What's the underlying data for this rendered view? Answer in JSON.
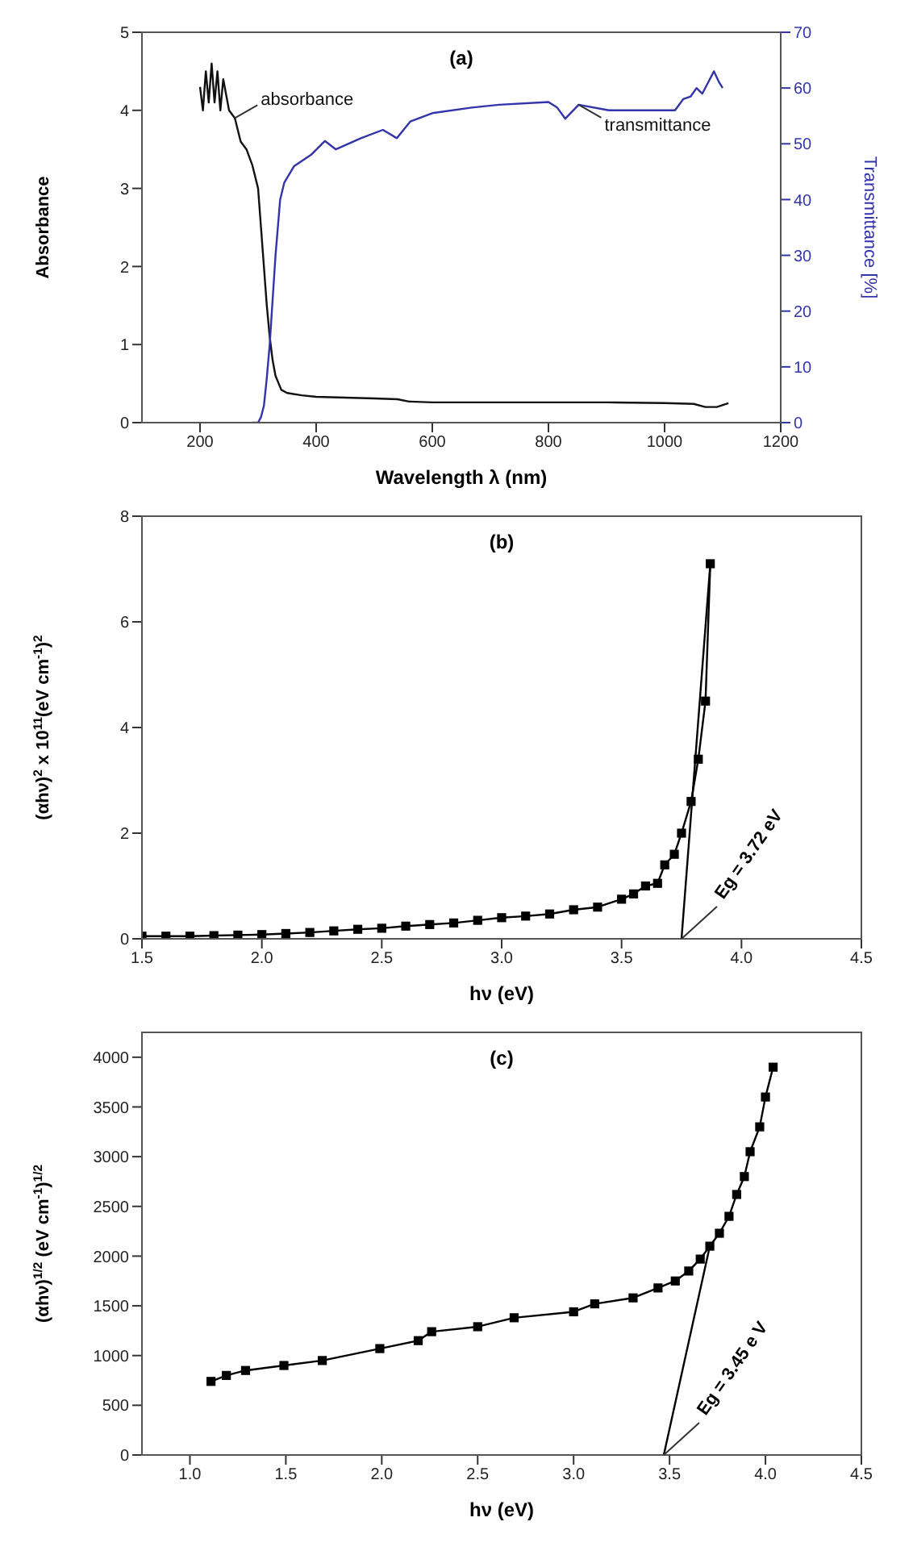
{
  "chart_data": [
    {
      "type": "line",
      "annotations": [
        "(a)"
      ],
      "xlabel": "Wavelength λ (nm)",
      "ylabel": "Absorbance",
      "y2label": "Transmittance [%]",
      "xlim": [
        100,
        1200
      ],
      "xticks": [
        200,
        400,
        600,
        800,
        1000,
        1200
      ],
      "ylim": [
        0,
        5
      ],
      "yticks": [
        0,
        1,
        2,
        3,
        4,
        5
      ],
      "y2lim": [
        0,
        70
      ],
      "y2ticks": [
        0,
        10,
        20,
        30,
        40,
        50,
        60,
        70
      ],
      "series": [
        {
          "name": "absorbance",
          "color": "#111111",
          "x": [
            200,
            205,
            210,
            215,
            220,
            225,
            230,
            235,
            240,
            245,
            250,
            260,
            270,
            280,
            290,
            300,
            305,
            310,
            315,
            320,
            325,
            330,
            340,
            350,
            375,
            400,
            450,
            500,
            540,
            560,
            600,
            700,
            800,
            900,
            1000,
            1050,
            1070,
            1090,
            1110
          ],
          "values": [
            4.3,
            4.0,
            4.5,
            4.1,
            4.6,
            4.1,
            4.5,
            4.0,
            4.4,
            4.2,
            4.0,
            3.9,
            3.6,
            3.5,
            3.3,
            3.0,
            2.5,
            2.0,
            1.5,
            1.1,
            0.8,
            0.6,
            0.42,
            0.38,
            0.35,
            0.33,
            0.32,
            0.31,
            0.3,
            0.27,
            0.26,
            0.26,
            0.26,
            0.26,
            0.25,
            0.24,
            0.2,
            0.2,
            0.25
          ]
        },
        {
          "name": "transmittance",
          "color": "#3333aa",
          "axis": "y2",
          "x": [
            290,
            300,
            305,
            310,
            315,
            320,
            325,
            330,
            338,
            345,
            362,
            391,
            415,
            434,
            477,
            515,
            539,
            562,
            600,
            668,
            715,
            800,
            815,
            829,
            852,
            904,
            1018,
            1032,
            1045,
            1055,
            1065,
            1075,
            1085,
            1094,
            1100
          ],
          "values": [
            0,
            0,
            1,
            3,
            8,
            14,
            22,
            30,
            40,
            43,
            46,
            48,
            50.5,
            49,
            51,
            52.5,
            51,
            54,
            55.5,
            56.5,
            57,
            57.5,
            56.5,
            54.5,
            57,
            56,
            56,
            58,
            58.5,
            60,
            59,
            61,
            63,
            61,
            60
          ]
        }
      ]
    },
    {
      "type": "line",
      "marker": "square",
      "annotations": [
        "(b)",
        {
          "text": "Eg = 3.72 eV",
          "x": 3.75,
          "y": 0
        }
      ],
      "xlabel": "hν (eV)",
      "ylabel": "(αhν)$^{2}$ x 10$^{11}$(eV cm$^{-1}$)$^{2}$",
      "xlim": [
        1.5,
        4.5
      ],
      "xticks": [
        {
          "value": 1.5,
          "label": "1.5"
        },
        {
          "value": 2,
          "label": "2.0"
        },
        {
          "value": 2.5,
          "label": "2.5"
        },
        {
          "value": 3,
          "label": "3.0"
        },
        {
          "value": 3.5,
          "label": "3.5"
        },
        {
          "value": 4,
          "label": "4.0"
        },
        {
          "value": 4.5,
          "label": "4.5"
        }
      ],
      "ylim": [
        0,
        8
      ],
      "yticks": [
        0,
        2,
        4,
        6,
        8
      ],
      "series": [
        {
          "color": "#000000",
          "x": [
            1.5,
            1.6,
            1.7,
            1.8,
            1.9,
            2.0,
            2.1,
            2.2,
            2.3,
            2.4,
            2.5,
            2.6,
            2.7,
            2.8,
            2.9,
            3.0,
            3.1,
            3.2,
            3.3,
            3.4,
            3.5,
            3.55,
            3.6,
            3.65,
            3.68,
            3.72,
            3.75,
            3.79,
            3.82,
            3.85,
            3.87
          ],
          "values": [
            0.05,
            0.05,
            0.05,
            0.06,
            0.07,
            0.08,
            0.1,
            0.12,
            0.15,
            0.18,
            0.2,
            0.24,
            0.27,
            0.3,
            0.35,
            0.4,
            0.43,
            0.47,
            0.55,
            0.6,
            0.75,
            0.85,
            1.0,
            1.05,
            1.4,
            1.6,
            2.0,
            2.6,
            3.4,
            4.5,
            7.1
          ]
        },
        {
          "color": "#000000",
          "marker": "none",
          "x": [
            3.75,
            3.87
          ],
          "values": [
            0,
            7.1
          ]
        }
      ]
    },
    {
      "type": "line",
      "marker": "square",
      "annotations": [
        "(c)",
        {
          "text": "Eg = 3.45 e V",
          "x": 3.47,
          "y": 0
        }
      ],
      "xlabel": "hν (eV)",
      "ylabel": "(αhν)$^{1/2}$ (eV cm$^{-1}$)$^{1/2}$",
      "xlim": [
        0.75,
        4.5
      ],
      "xticks": [
        {
          "value": 1,
          "label": "1.0"
        },
        {
          "value": 1.5,
          "label": "1.5"
        },
        {
          "value": 2,
          "label": "2.0"
        },
        {
          "value": 2.5,
          "label": "2.5"
        },
        {
          "value": 3,
          "label": "3.0"
        },
        {
          "value": 3.5,
          "label": "3.5"
        },
        {
          "value": 4,
          "label": "4.0"
        },
        {
          "value": 4.5,
          "label": "4.5"
        }
      ],
      "ylim": [
        0,
        4250
      ],
      "yticks": [
        0,
        500,
        1000,
        1500,
        2000,
        2500,
        3000,
        3500,
        4000
      ],
      "series": [
        {
          "color": "#000000",
          "x": [
            1.11,
            1.19,
            1.29,
            1.49,
            1.69,
            1.99,
            2.19,
            2.26,
            2.5,
            2.69,
            3.0,
            3.11,
            3.31,
            3.44,
            3.53,
            3.6,
            3.66,
            3.71,
            3.76,
            3.81,
            3.85,
            3.89,
            3.92,
            3.97,
            4.0,
            4.04
          ],
          "values": [
            740,
            800,
            850,
            900,
            950,
            1070,
            1150,
            1240,
            1290,
            1380,
            1440,
            1520,
            1580,
            1680,
            1750,
            1850,
            1970,
            2100,
            2230,
            2400,
            2620,
            2800,
            3050,
            3300,
            3600,
            3900
          ]
        },
        {
          "color": "#000000",
          "marker": "none",
          "x": [
            3.47,
            3.71
          ],
          "values": [
            0,
            2100
          ]
        }
      ]
    }
  ]
}
